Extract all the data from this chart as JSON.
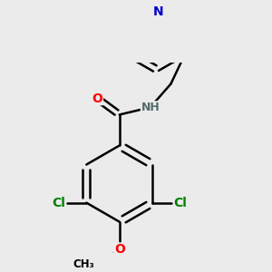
{
  "bg_color": "#ebebeb",
  "bond_color": "#000000",
  "bond_width": 1.8,
  "atom_colors": {
    "O": "#ff0000",
    "N": "#556b6b",
    "Cl": "#008000",
    "N_py": "#0000cc"
  },
  "font_size_atoms": 10,
  "font_size_small": 8.5
}
